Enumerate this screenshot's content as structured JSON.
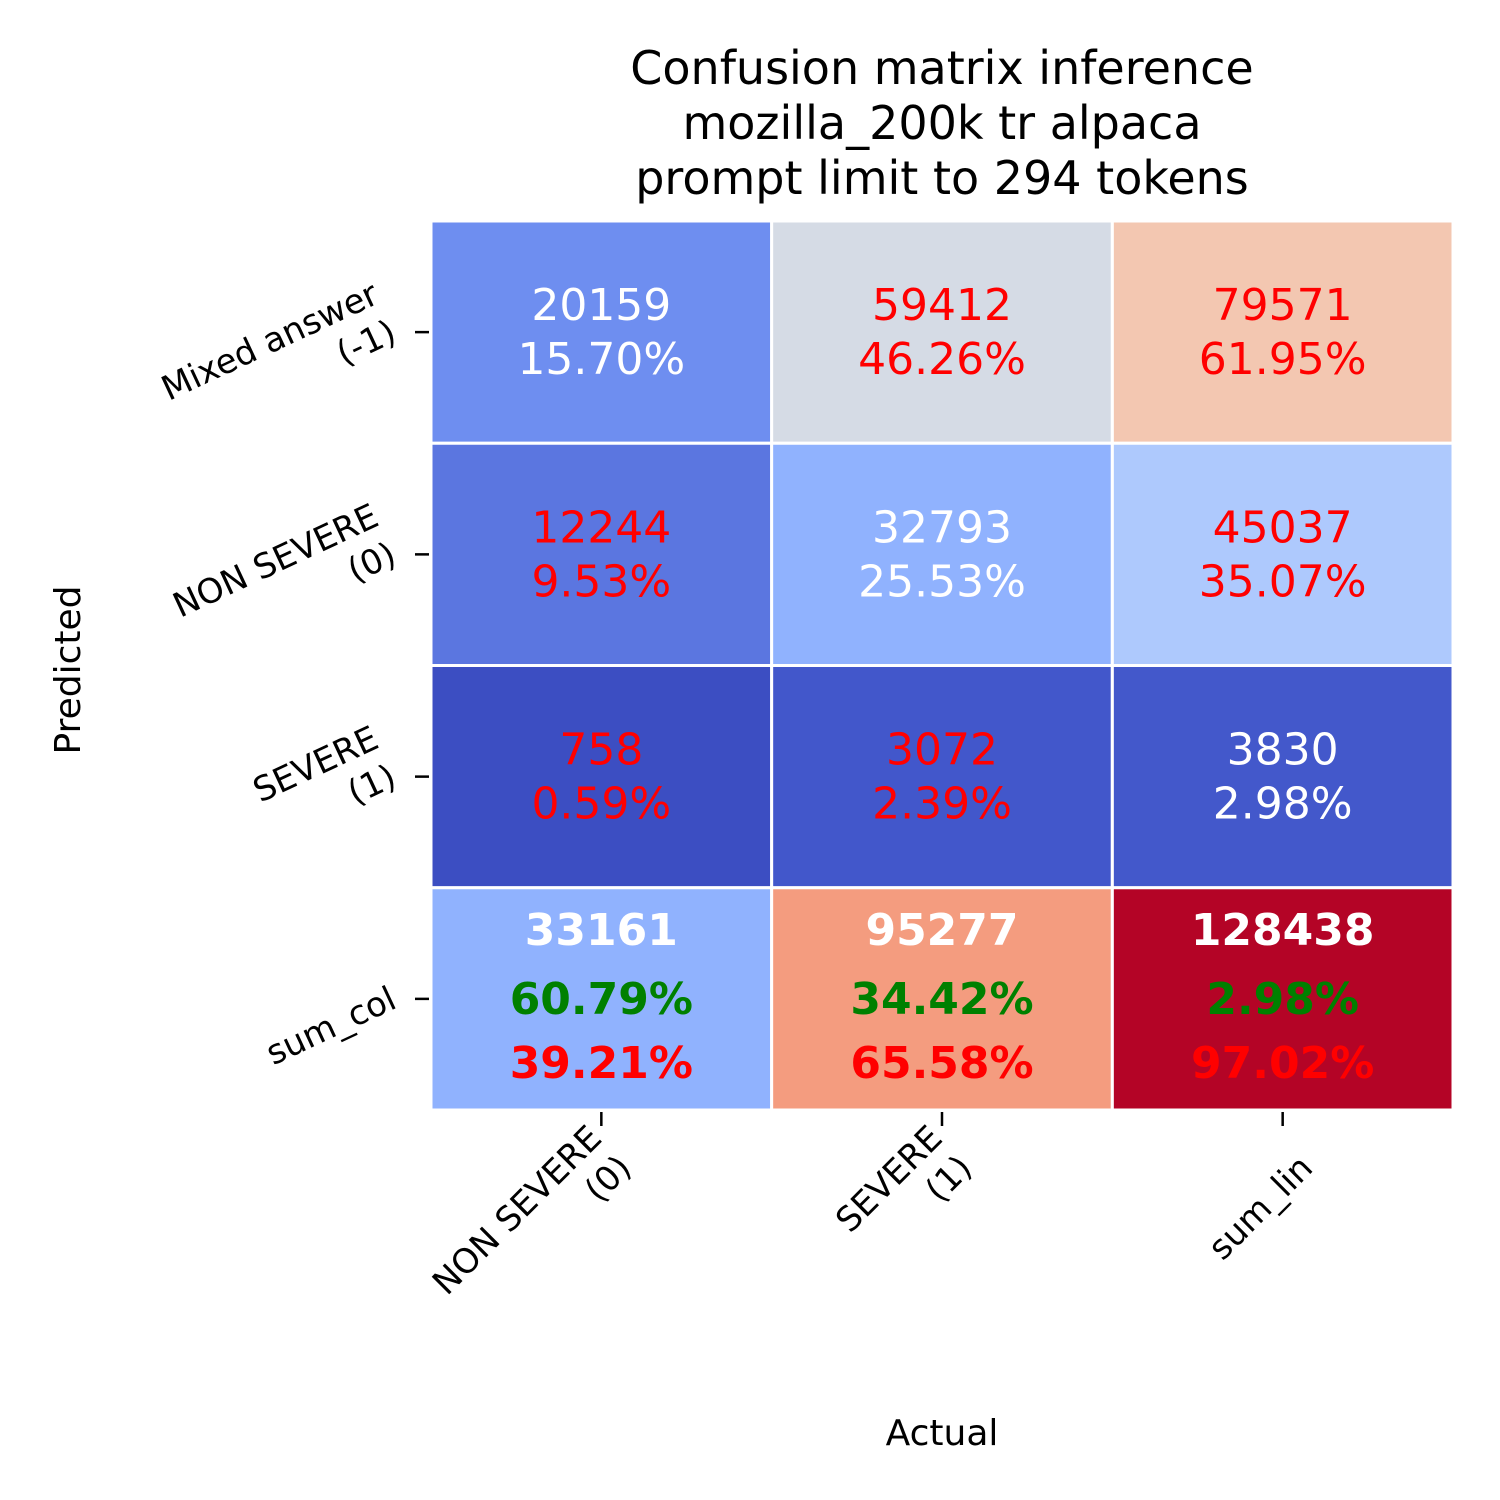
{
  "chart_data": {
    "type": "heatmap",
    "title": [
      "Confusion matrix inference",
      "mozilla_200k tr alpaca",
      "prompt limit to 294 tokens"
    ],
    "xlabel": "Actual",
    "ylabel": "Predicted",
    "x_categories": [
      [
        "NON SEVERE",
        "(0)"
      ],
      [
        "SEVERE",
        "(1)"
      ],
      [
        "sum_lin"
      ]
    ],
    "y_categories": [
      [
        "Mixed answer",
        "(-1)"
      ],
      [
        "NON SEVERE",
        "(0)"
      ],
      [
        "SEVERE",
        "(1)"
      ],
      [
        "sum_col"
      ]
    ],
    "colormap": "coolwarm",
    "cells": [
      [
        {
          "value": 20159,
          "percent": "15.70%",
          "fill": "#6e8ef0",
          "text_color": "#ffffff"
        },
        {
          "value": 59412,
          "percent": "46.26%",
          "fill": "#d5dbe5",
          "text_color": "#ff0000"
        },
        {
          "value": 79571,
          "percent": "61.95%",
          "fill": "#f3c7b1",
          "text_color": "#ff0000"
        }
      ],
      [
        {
          "value": 12244,
          "percent": "9.53%",
          "fill": "#5b76e0",
          "text_color": "#ff0000"
        },
        {
          "value": 32793,
          "percent": "25.53%",
          "fill": "#90b2fe",
          "text_color": "#ffffff"
        },
        {
          "value": 45037,
          "percent": "35.07%",
          "fill": "#aec9fd",
          "text_color": "#ff0000"
        }
      ],
      [
        {
          "value": 758,
          "percent": "0.59%",
          "fill": "#3c4ec2",
          "text_color": "#ff0000"
        },
        {
          "value": 3072,
          "percent": "2.39%",
          "fill": "#4257cb",
          "text_color": "#ff0000"
        },
        {
          "value": 3830,
          "percent": "2.98%",
          "fill": "#4358cb",
          "text_color": "#ffffff"
        }
      ]
    ],
    "sum_row": [
      {
        "value": 33161,
        "correct": "60.79%",
        "incorrect": "39.21%",
        "fill": "#90b2fe"
      },
      {
        "value": 95277,
        "correct": "34.42%",
        "incorrect": "65.58%",
        "fill": "#f49c7f"
      },
      {
        "value": 128438,
        "correct": "2.98%",
        "incorrect": "97.02%",
        "fill": "#b40426"
      }
    ],
    "sum_row_colors": {
      "value": "#ffffff",
      "correct": "#008000",
      "incorrect": "#ff0000"
    },
    "grid_line_color": "#ffffff"
  }
}
